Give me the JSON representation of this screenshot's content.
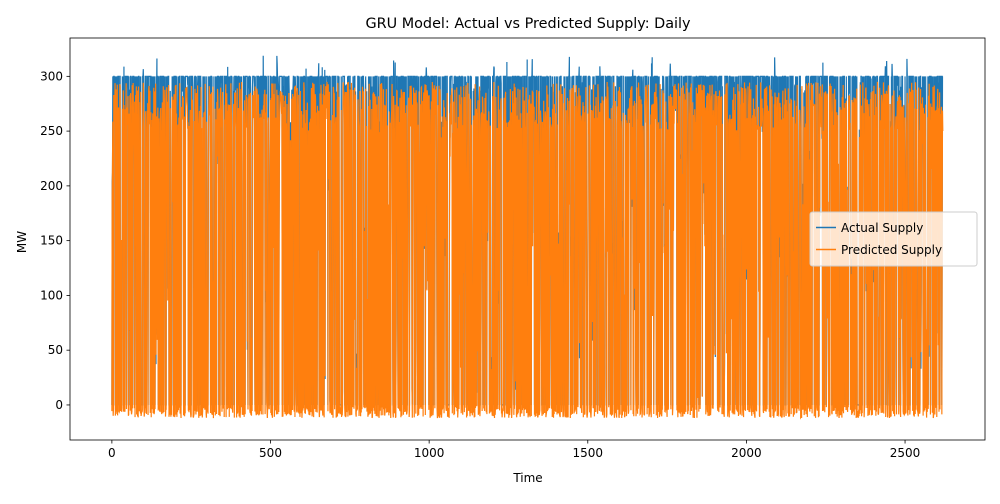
{
  "chart_data": {
    "type": "line",
    "title": "GRU Model: Actual vs Predicted Supply: Daily",
    "xlabel": "Time",
    "ylabel": "MW",
    "xlim": [
      -132,
      2752
    ],
    "ylim": [
      -32,
      335
    ],
    "xticks": [
      0,
      500,
      1000,
      1500,
      2000,
      2500
    ],
    "yticks": [
      0,
      50,
      100,
      150,
      200,
      250,
      300
    ],
    "grid": false,
    "legend_position": "center-right",
    "n_points": 2620,
    "series": [
      {
        "name": "Actual Supply",
        "color": "#1f77b4",
        "low_value": 0,
        "high_value": 300,
        "peak_values": [
          320,
          310,
          305
        ],
        "description_values": {
          "typical_min": 0,
          "typical_max": 300,
          "observed_max": 320
        }
      },
      {
        "name": "Predicted Supply",
        "color": "#ff7f0e",
        "low_value": -11,
        "high_value": 290,
        "description_values": {
          "typical_min": -11,
          "typical_max": 290,
          "observed_max": 305,
          "observed_min": -14
        }
      }
    ]
  }
}
